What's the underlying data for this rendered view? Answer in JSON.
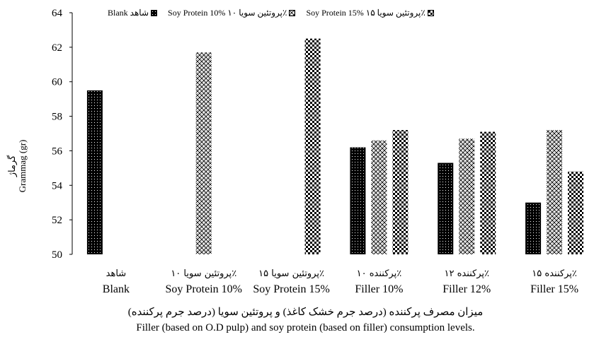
{
  "chart_data": {
    "type": "bar",
    "categories": [
      {
        "fa": "شاهد",
        "en": "Blank"
      },
      {
        "fa": "پروتئین سویا ۱۰٪",
        "en": "Soy Protein 10%"
      },
      {
        "fa": "پروتئین سویا ۱۵٪",
        "en": "Soy Protein 15%"
      },
      {
        "fa": "پرکننده ۱۰٪",
        "en": "Filler 10%"
      },
      {
        "fa": "پرکننده ۱۲٪",
        "en": "Filler 12%"
      },
      {
        "fa": "پرکننده ۱۵٪",
        "en": "Filler 15%"
      }
    ],
    "series": [
      {
        "name": "Blank شاهد",
        "values": [
          59.5,
          null,
          null,
          56.2,
          55.3,
          53.0
        ],
        "pattern": "dots"
      },
      {
        "name": "Soy Protein 10% پروتئین سویا ۱۰٪",
        "values": [
          null,
          61.7,
          null,
          56.6,
          56.7,
          57.2
        ],
        "pattern": "lattice"
      },
      {
        "name": "Soy Protein 15% پروتئین سویا ۱۵٪",
        "values": [
          null,
          null,
          62.5,
          57.2,
          57.1,
          54.8
        ],
        "pattern": "checker"
      }
    ],
    "ylabel_fa": "گرماژ",
    "ylabel_en": "Grammag (gr)",
    "xlabel_fa": "میزان مصرف پرکننده (درصد جرم خشک کاغذ) و پروتئین سویا (درصد جرم پرکننده)",
    "xlabel_en": "Filler (based on O.D pulp) and soy protein (based on filler) consumption levels.",
    "ylim": [
      50,
      64
    ],
    "yticks": [
      50,
      52,
      54,
      56,
      58,
      60,
      62,
      64
    ],
    "grid": false,
    "legend_position": "top"
  }
}
